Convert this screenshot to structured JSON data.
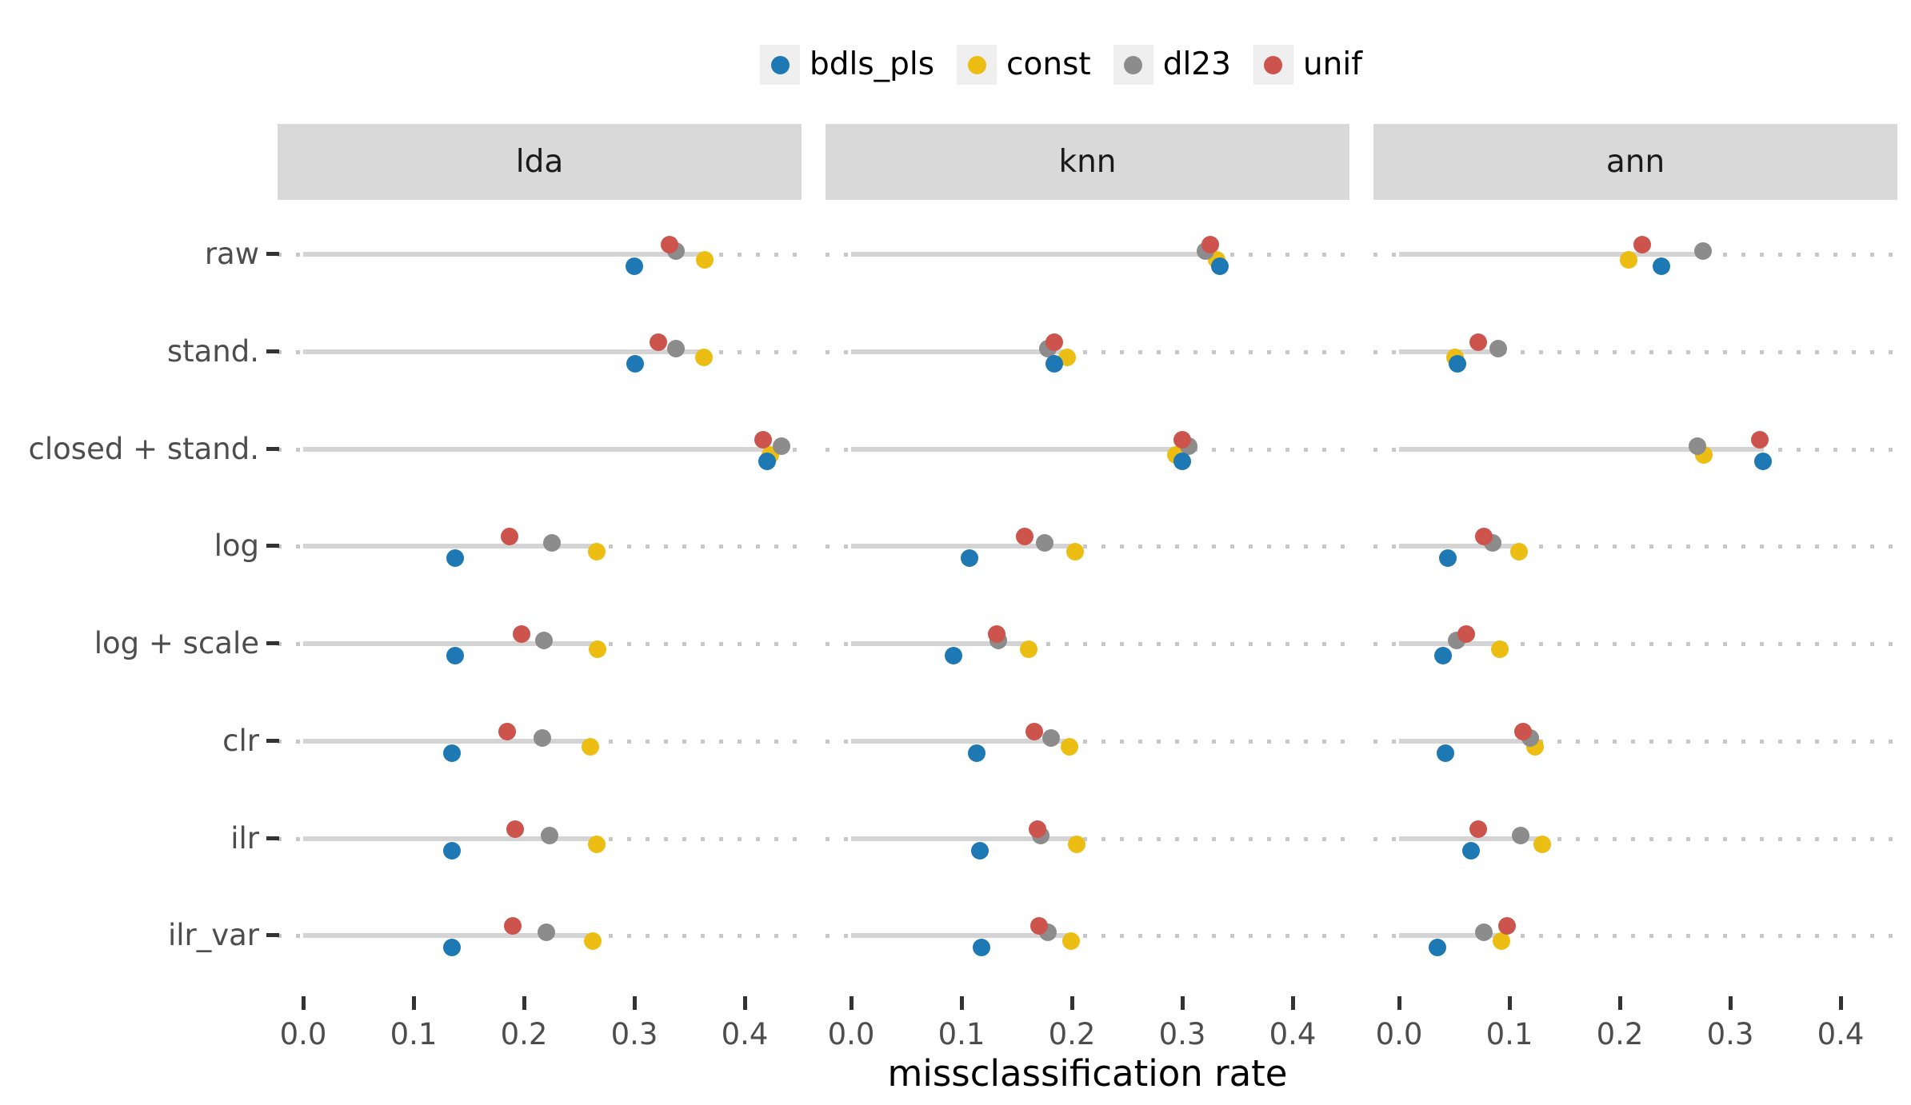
{
  "legend": {
    "items": [
      {
        "label": "bdls_pls",
        "color": "#1e78b4"
      },
      {
        "label": "const",
        "color": "#ecbe13"
      },
      {
        "label": "dl23",
        "color": "#8c8c8c"
      },
      {
        "label": "unif",
        "color": "#cc544d"
      }
    ]
  },
  "colors": {
    "bdls_pls": "#1e78b4",
    "const": "#ecbe13",
    "dl23": "#8c8c8c",
    "unif": "#cc544d",
    "bar": "#d4d4d4",
    "dotted_line": "#c7c7c7",
    "strip_bg": "#d9d9d9",
    "axis_text": "#4d4d4d",
    "tick_mark": "#333333"
  },
  "chart_data": {
    "type": "scatter",
    "title": "",
    "xlabel": "missclassification rate",
    "ylabel": "",
    "x_ticks": [
      "0.0",
      "0.1",
      "0.2",
      "0.3",
      "0.4"
    ],
    "x_tick_values": [
      0.0,
      0.1,
      0.2,
      0.3,
      0.4
    ],
    "xlim": [
      -0.023,
      0.451
    ],
    "grid": "off",
    "legend_position": "top",
    "facets": [
      "lda",
      "knn",
      "ann"
    ],
    "rows": [
      "raw",
      "stand.",
      "closed + stand.",
      "log",
      "log + scale",
      "clr",
      "ilr",
      "ilr_var"
    ],
    "series_order": [
      "bdls_pls",
      "const",
      "dl23",
      "unif"
    ],
    "note_bar": "solid grey bar spans from 0 to the maximum series value in each row; dotted line spans the full panel width",
    "values": {
      "lda": {
        "raw": {
          "bdls_pls": 0.3,
          "const": 0.364,
          "dl23": 0.338,
          "unif": 0.332
        },
        "stand.": {
          "bdls_pls": 0.301,
          "const": 0.363,
          "dl23": 0.338,
          "unif": 0.322
        },
        "closed + stand.": {
          "bdls_pls": 0.42,
          "const": 0.423,
          "dl23": 0.433,
          "unif": 0.417
        },
        "log": {
          "bdls_pls": 0.138,
          "const": 0.266,
          "dl23": 0.225,
          "unif": 0.187
        },
        "log + scale": {
          "bdls_pls": 0.138,
          "const": 0.267,
          "dl23": 0.218,
          "unif": 0.198
        },
        "clr": {
          "bdls_pls": 0.135,
          "const": 0.26,
          "dl23": 0.217,
          "unif": 0.185
        },
        "ilr": {
          "bdls_pls": 0.135,
          "const": 0.266,
          "dl23": 0.223,
          "unif": 0.192
        },
        "ilr_var": {
          "bdls_pls": 0.135,
          "const": 0.262,
          "dl23": 0.22,
          "unif": 0.19
        }
      },
      "knn": {
        "raw": {
          "bdls_pls": 0.334,
          "const": 0.331,
          "dl23": 0.321,
          "unif": 0.325
        },
        "stand.": {
          "bdls_pls": 0.184,
          "const": 0.196,
          "dl23": 0.178,
          "unif": 0.184
        },
        "closed + stand.": {
          "bdls_pls": 0.3,
          "const": 0.294,
          "dl23": 0.306,
          "unif": 0.3
        },
        "log": {
          "bdls_pls": 0.107,
          "const": 0.203,
          "dl23": 0.175,
          "unif": 0.157
        },
        "log + scale": {
          "bdls_pls": 0.093,
          "const": 0.161,
          "dl23": 0.133,
          "unif": 0.132
        },
        "clr": {
          "bdls_pls": 0.114,
          "const": 0.198,
          "dl23": 0.181,
          "unif": 0.166
        },
        "ilr": {
          "bdls_pls": 0.117,
          "const": 0.204,
          "dl23": 0.172,
          "unif": 0.169
        },
        "ilr_var": {
          "bdls_pls": 0.118,
          "const": 0.199,
          "dl23": 0.178,
          "unif": 0.17
        }
      },
      "ann": {
        "raw": {
          "bdls_pls": 0.238,
          "const": 0.208,
          "dl23": 0.275,
          "unif": 0.22
        },
        "stand.": {
          "bdls_pls": 0.053,
          "const": 0.051,
          "dl23": 0.09,
          "unif": 0.072
        },
        "closed + stand.": {
          "bdls_pls": 0.33,
          "const": 0.276,
          "dl23": 0.27,
          "unif": 0.327
        },
        "log": {
          "bdls_pls": 0.044,
          "const": 0.109,
          "dl23": 0.085,
          "unif": 0.077
        },
        "log + scale": {
          "bdls_pls": 0.04,
          "const": 0.091,
          "dl23": 0.052,
          "unif": 0.061
        },
        "clr": {
          "bdls_pls": 0.042,
          "const": 0.123,
          "dl23": 0.119,
          "unif": 0.112
        },
        "ilr": {
          "bdls_pls": 0.065,
          "const": 0.13,
          "dl23": 0.11,
          "unif": 0.072
        },
        "ilr_var": {
          "bdls_pls": 0.035,
          "const": 0.093,
          "dl23": 0.077,
          "unif": 0.098
        }
      }
    }
  }
}
